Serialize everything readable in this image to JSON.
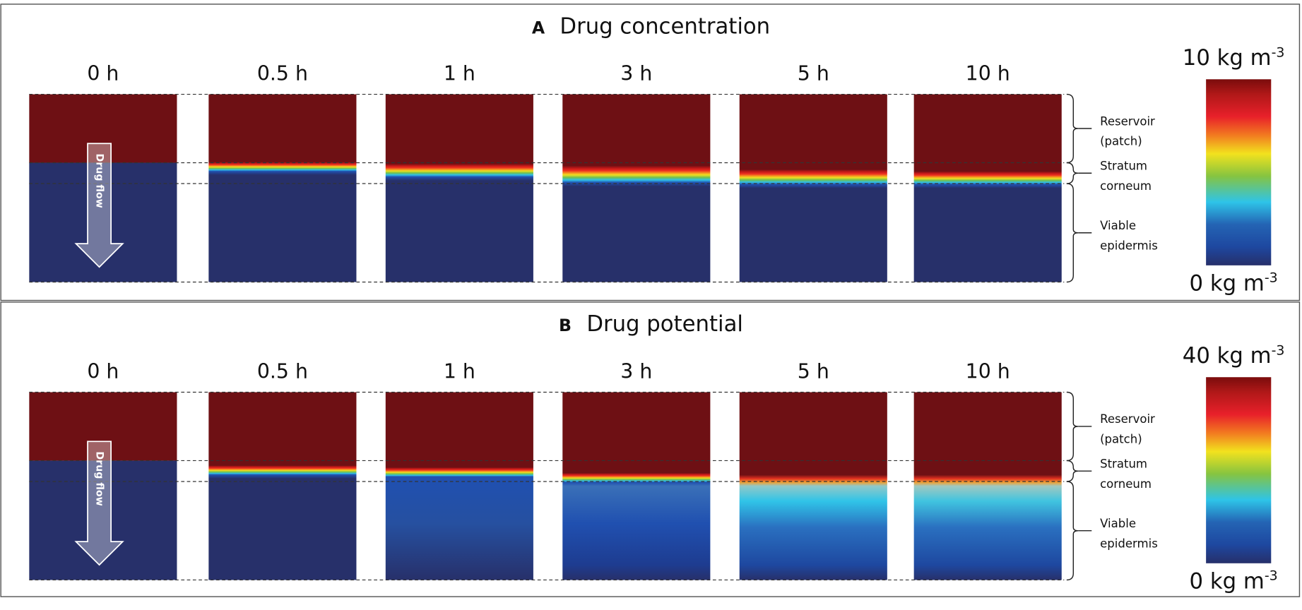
{
  "panels": [
    {
      "letter": "A",
      "title": "Drug concentration",
      "times": [
        "0 h",
        "0.5 h",
        "1 h",
        "3 h",
        "5 h",
        "10 h"
      ],
      "layers": [
        "Reservoir",
        "(patch)",
        "Stratum",
        "corneum",
        "Viable",
        "epidermis"
      ],
      "arrow_label": "Drug flow",
      "colorbar": {
        "max": {
          "text": "10 kg m",
          "superscript": "-3"
        },
        "min": {
          "text": "0 kg m",
          "superscript": "-3"
        }
      }
    },
    {
      "letter": "B",
      "title": "Drug potential",
      "times": [
        "0 h",
        "0.5 h",
        "1 h",
        "3 h",
        "5 h",
        "10 h"
      ],
      "layers": [
        "Reservoir",
        "(patch)",
        "Stratum",
        "corneum",
        "Viable",
        "epidermis"
      ],
      "arrow_label": "Drug flow",
      "colorbar": {
        "max": {
          "text": "40 kg m",
          "superscript": "-3"
        },
        "min": {
          "text": "0 kg m",
          "superscript": "-3"
        }
      }
    }
  ]
}
